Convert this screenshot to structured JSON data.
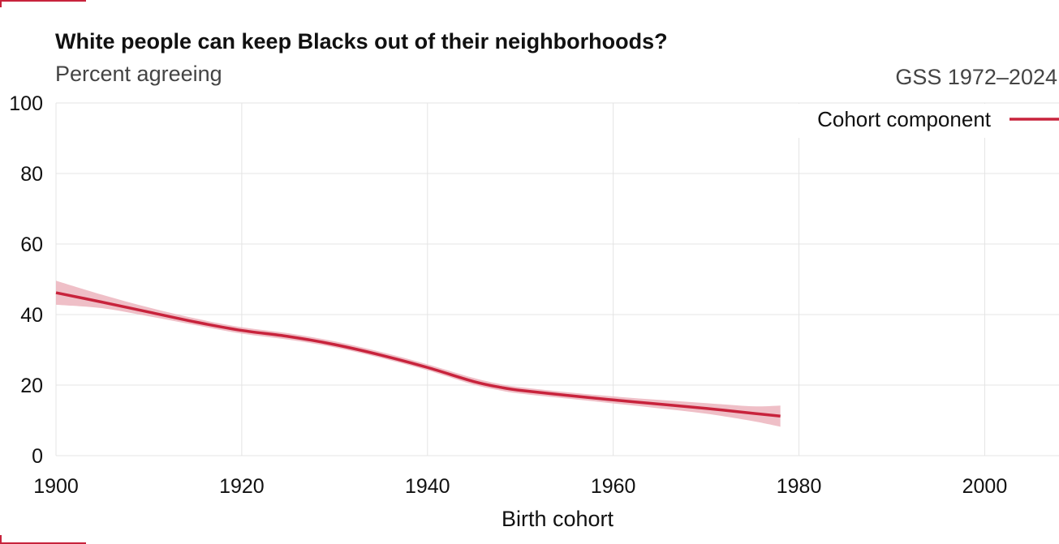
{
  "header": {
    "title": "White people can keep Blacks out of their neighborhoods?",
    "subtitle": "Percent agreeing",
    "source": "GSS 1972–2024"
  },
  "colors": {
    "accent": "#c8233c",
    "band": "#ecb4bd",
    "grid": "#e4e4e4",
    "background": "#ffffff"
  },
  "chart_data": {
    "type": "line",
    "title": "White people can keep Blacks out of their neighborhoods?",
    "subtitle": "Percent agreeing",
    "xlabel": "Birth cohort",
    "ylabel": "",
    "xlim": [
      1900,
      2008
    ],
    "ylim": [
      0,
      100
    ],
    "x_ticks": [
      1900,
      1920,
      1940,
      1960,
      1980,
      2000
    ],
    "y_ticks": [
      0,
      20,
      40,
      60,
      80,
      100
    ],
    "grid": true,
    "legend_position": "top-right",
    "series": [
      {
        "name": "Cohort component",
        "color": "#c8233c",
        "x": [
          1900,
          1905,
          1910,
          1915,
          1920,
          1925,
          1930,
          1935,
          1940,
          1945,
          1948,
          1950,
          1955,
          1960,
          1965,
          1970,
          1975,
          1978
        ],
        "y": [
          46.2,
          43.5,
          40.7,
          37.9,
          35.5,
          33.8,
          31.5,
          28.5,
          25.0,
          21.0,
          19.3,
          18.5,
          17.1,
          15.8,
          14.6,
          13.4,
          12.0,
          11.2
        ],
        "lower": [
          42.8,
          41.8,
          39.5,
          37.0,
          34.6,
          32.9,
          30.7,
          27.7,
          24.2,
          20.1,
          18.4,
          17.6,
          16.2,
          14.8,
          13.4,
          11.9,
          9.8,
          8.2
        ],
        "upper": [
          49.6,
          45.6,
          42.0,
          38.9,
          36.4,
          34.7,
          32.4,
          29.4,
          25.9,
          22.0,
          20.2,
          19.4,
          18.0,
          16.8,
          15.8,
          14.9,
          14.0,
          14.2
        ]
      }
    ]
  }
}
